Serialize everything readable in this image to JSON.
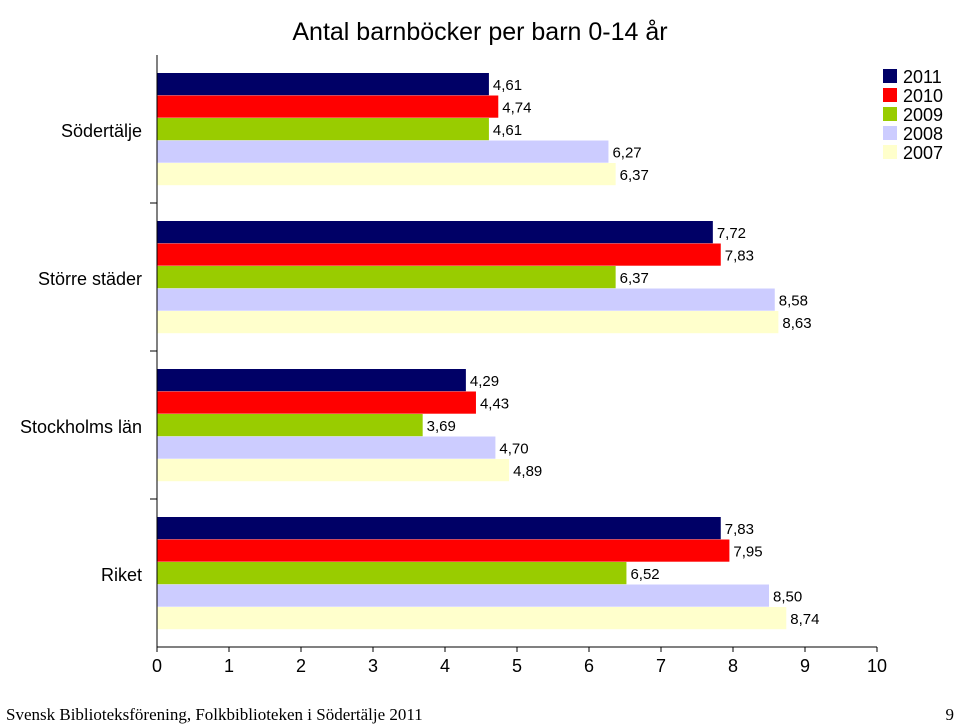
{
  "chart_data": {
    "type": "bar",
    "orientation": "horizontal",
    "title": "Antal barnböcker per barn 0-14 år",
    "categories": [
      "Södertälje",
      "Större städer",
      "Stockholms län",
      "Riket"
    ],
    "series": [
      {
        "name": "2011",
        "color": "#000066",
        "values": [
          4.61,
          7.72,
          4.29,
          7.83
        ],
        "labels": [
          "4,61",
          "7,72",
          "4,29",
          "7,83"
        ]
      },
      {
        "name": "2010",
        "color": "#ff0000",
        "values": [
          4.74,
          7.83,
          4.43,
          7.95
        ],
        "labels": [
          "4,74",
          "7,83",
          "4,43",
          "7,95"
        ]
      },
      {
        "name": "2009",
        "color": "#99cc00",
        "values": [
          4.61,
          6.37,
          3.69,
          6.52
        ],
        "labels": [
          "4,61",
          "6,37",
          "3,69",
          "6,52"
        ]
      },
      {
        "name": "2008",
        "color": "#ccccff",
        "values": [
          6.27,
          8.58,
          4.7,
          8.5
        ],
        "labels": [
          "6,27",
          "8,58",
          "4,70",
          "8,50"
        ]
      },
      {
        "name": "2007",
        "color": "#ffffcc",
        "values": [
          6.37,
          8.63,
          4.89,
          8.74
        ],
        "labels": [
          "6,37",
          "8,63",
          "4,89",
          "8,74"
        ]
      }
    ],
    "xlim": [
      0,
      10
    ],
    "xticks": [
      "0",
      "1",
      "2",
      "3",
      "4",
      "5",
      "6",
      "7",
      "8",
      "9",
      "10"
    ],
    "grid": false,
    "legend_position": "top-right"
  },
  "footer": {
    "source": "Svensk Biblioteksförening, Folkbiblioteken i Södertälje 2011",
    "page_number": "9"
  }
}
